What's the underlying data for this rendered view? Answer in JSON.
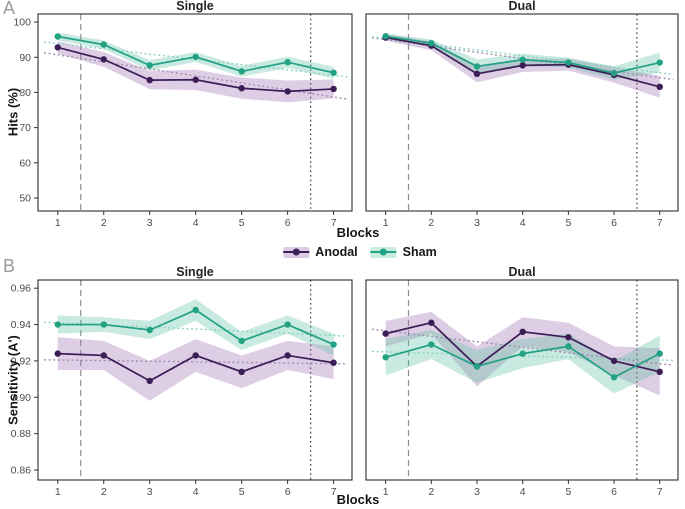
{
  "figure": {
    "panel_a": {
      "label": "A",
      "ylabel": "Hits (%)",
      "xlabel": "Blocks"
    },
    "panel_b": {
      "label": "B",
      "ylabel": "Sensitivity (A')",
      "xlabel": "Blocks"
    },
    "legend": {
      "items": [
        {
          "label": "Anodal",
          "line_color": "#3d1d55",
          "key_fill": "#ddcbe5",
          "band_fill": "rgba(153,102,173,0.32)",
          "trend_color": "#a08fb0"
        },
        {
          "label": "Sham",
          "line_color": "#23a184",
          "key_fill": "#c9ece0",
          "band_fill": "rgba(90,190,160,0.33)",
          "trend_color": "#8bd2c1"
        }
      ]
    },
    "style": {
      "border_color": "#2e2e2e",
      "tick_color": "#333333",
      "tick_label_color": "#4d4d4d",
      "dashed_vline_color": "#8f8f8f",
      "dotted_vline_color": "#4a4a4a"
    }
  },
  "chart_data": [
    {
      "id": "a-single",
      "type": "line",
      "panel": "A",
      "title": "Single",
      "xlabel": "Blocks",
      "ylabel": "Hits (%)",
      "x": [
        1,
        2,
        3,
        4,
        5,
        6,
        7
      ],
      "xtick_labels": [
        "1",
        "2",
        "3",
        "4",
        "5",
        "6",
        "7"
      ],
      "xlim": [
        0.57,
        7.4
      ],
      "ylim": [
        46.3,
        102.3
      ],
      "yticks": [
        50,
        60,
        70,
        80,
        90,
        100
      ],
      "ytick_labels": [
        "50",
        "60",
        "70",
        "80",
        "90",
        "100"
      ],
      "vline_dashed_x": 1.5,
      "vline_dotted_x": 6.5,
      "series": [
        {
          "name": "Anodal",
          "values": [
            92.8,
            89.4,
            83.5,
            83.6,
            81.2,
            80.3,
            81.0
          ],
          "band": [
            1.8,
            2.1,
            2.6,
            2.9,
            3.0,
            3.1,
            2.7
          ],
          "trend": [
            90.7,
            78.7
          ]
        },
        {
          "name": "Sham",
          "values": [
            95.9,
            93.6,
            87.7,
            90.1,
            86.0,
            88.6,
            85.6
          ],
          "band": [
            1.1,
            1.2,
            1.5,
            1.4,
            1.5,
            1.6,
            1.7
          ],
          "trend": [
            93.9,
            84.9
          ]
        }
      ]
    },
    {
      "id": "a-dual",
      "type": "line",
      "panel": "A",
      "title": "Dual",
      "xlabel": "Blocks",
      "ylabel": "Hits (%)",
      "x": [
        1,
        2,
        3,
        4,
        5,
        6,
        7
      ],
      "xtick_labels": [
        "1",
        "2",
        "3",
        "4",
        "5",
        "6",
        "7"
      ],
      "xlim": [
        0.57,
        7.4
      ],
      "ylim": [
        46.3,
        102.3
      ],
      "yticks": [
        50,
        60,
        70,
        80,
        90,
        100
      ],
      "ytick_labels": [
        "50",
        "60",
        "70",
        "80",
        "90",
        "100"
      ],
      "vline_dashed_x": 1.5,
      "vline_dotted_x": 6.5,
      "series": [
        {
          "name": "Anodal",
          "values": [
            95.6,
            93.3,
            85.3,
            87.7,
            87.9,
            85.0,
            81.6
          ],
          "band": [
            0.9,
            1.3,
            2.4,
            1.9,
            1.7,
            2.2,
            3.1
          ],
          "trend": [
            95.0,
            84.2
          ]
        },
        {
          "name": "Sham",
          "values": [
            96.0,
            94.0,
            87.4,
            89.3,
            88.5,
            85.5,
            88.5
          ],
          "band": [
            0.8,
            1.1,
            2.0,
            1.7,
            1.4,
            1.9,
            2.9
          ],
          "trend": [
            95.3,
            85.6
          ]
        }
      ]
    },
    {
      "id": "b-single",
      "type": "line",
      "panel": "B",
      "title": "Single",
      "xlabel": "Blocks",
      "ylabel": "Sensitivity (A')",
      "x": [
        1,
        2,
        3,
        4,
        5,
        6,
        7
      ],
      "xtick_labels": [
        "1",
        "2",
        "3",
        "4",
        "5",
        "6",
        "7"
      ],
      "xlim": [
        0.57,
        7.4
      ],
      "ylim": [
        0.8545,
        0.9645
      ],
      "yticks": [
        0.86,
        0.88,
        0.9,
        0.92,
        0.94,
        0.96
      ],
      "ytick_labels": [
        "0.86",
        "0.88",
        "0.90",
        "0.92",
        "0.94",
        "0.96"
      ],
      "vline_dashed_x": 1.5,
      "vline_dotted_x": 6.5,
      "series": [
        {
          "name": "Anodal",
          "values": [
            0.924,
            0.923,
            0.909,
            0.923,
            0.914,
            0.923,
            0.919
          ],
          "band": [
            0.009,
            0.008,
            0.011,
            0.009,
            0.009,
            0.008,
            0.009
          ],
          "trend": [
            0.9205,
            0.9185
          ]
        },
        {
          "name": "Sham",
          "values": [
            0.94,
            0.94,
            0.937,
            0.948,
            0.931,
            0.94,
            0.929
          ],
          "band": [
            0.005,
            0.004,
            0.005,
            0.006,
            0.005,
            0.005,
            0.006
          ],
          "trend": [
            0.941,
            0.934
          ]
        }
      ]
    },
    {
      "id": "b-dual",
      "type": "line",
      "panel": "B",
      "title": "Dual",
      "xlabel": "Blocks",
      "ylabel": "Sensitivity (A')",
      "x": [
        1,
        2,
        3,
        4,
        5,
        6,
        7
      ],
      "xtick_labels": [
        "1",
        "2",
        "3",
        "4",
        "5",
        "6",
        "7"
      ],
      "xlim": [
        0.57,
        7.4
      ],
      "ylim": [
        0.8545,
        0.9645
      ],
      "yticks": [
        0.86,
        0.88,
        0.9,
        0.92,
        0.94,
        0.96
      ],
      "ytick_labels": [
        "0.86",
        "0.88",
        "0.90",
        "0.92",
        "0.94",
        "0.96"
      ],
      "vline_dashed_x": 1.5,
      "vline_dotted_x": 6.5,
      "series": [
        {
          "name": "Anodal",
          "values": [
            0.935,
            0.941,
            0.917,
            0.936,
            0.933,
            0.92,
            0.914
          ],
          "band": [
            0.007,
            0.006,
            0.011,
            0.008,
            0.008,
            0.008,
            0.013
          ],
          "trend": [
            0.9365,
            0.9185
          ]
        },
        {
          "name": "Sham",
          "values": [
            0.922,
            0.929,
            0.917,
            0.924,
            0.928,
            0.911,
            0.924
          ],
          "band": [
            0.01,
            0.008,
            0.009,
            0.008,
            0.007,
            0.009,
            0.01
          ],
          "trend": [
            0.925,
            0.9205
          ]
        }
      ]
    }
  ]
}
